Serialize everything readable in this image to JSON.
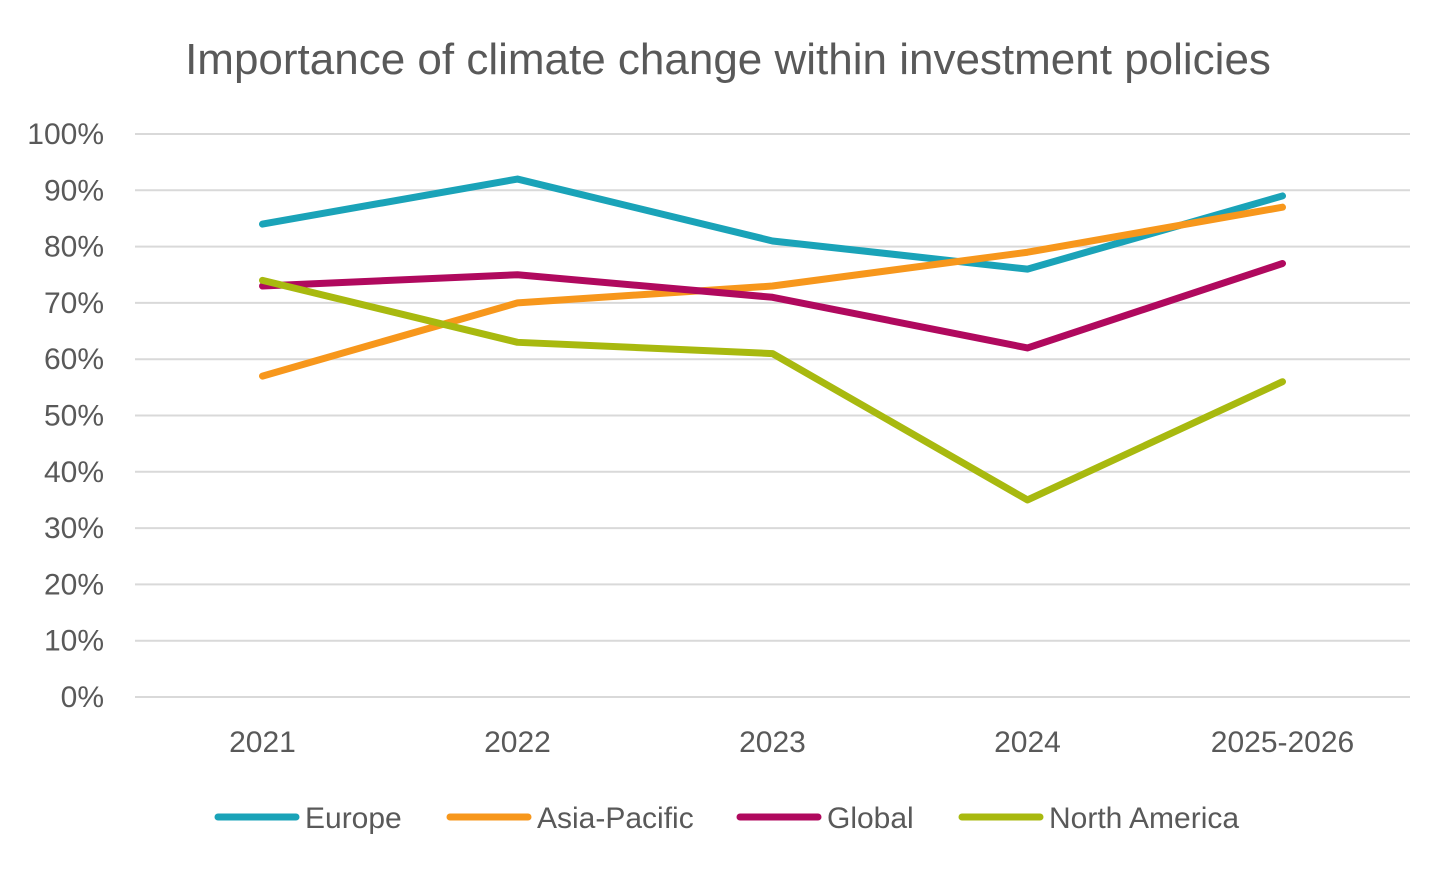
{
  "chart_data": {
    "type": "line",
    "title": "Importance of climate change within investment policies",
    "xlabel": "",
    "ylabel": "",
    "categories": [
      "2021",
      "2022",
      "2023",
      "2024",
      "2025-2026"
    ],
    "y_ticks": [
      "0%",
      "10%",
      "20%",
      "30%",
      "40%",
      "50%",
      "60%",
      "70%",
      "80%",
      "90%",
      "100%"
    ],
    "ylim": [
      0,
      100
    ],
    "grid": true,
    "legend_position": "bottom",
    "series": [
      {
        "name": "Europe",
        "color": "#1aa3b8",
        "values": [
          84,
          92,
          81,
          76,
          89
        ]
      },
      {
        "name": "Asia-Pacific",
        "color": "#f7971c",
        "values": [
          57,
          70,
          73,
          79,
          87
        ]
      },
      {
        "name": "Global",
        "color": "#b0095e",
        "values": [
          73,
          75,
          71,
          62,
          77
        ]
      },
      {
        "name": "North America",
        "color": "#a8b90f",
        "values": [
          74,
          63,
          61,
          35,
          56
        ]
      }
    ]
  }
}
